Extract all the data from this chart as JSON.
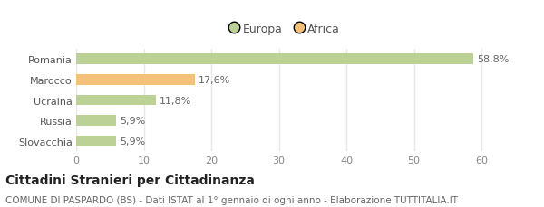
{
  "categories": [
    "Romania",
    "Marocco",
    "Ucraina",
    "Russia",
    "Slovacchia"
  ],
  "values": [
    58.8,
    17.6,
    11.8,
    5.9,
    5.9
  ],
  "labels": [
    "58,8%",
    "17,6%",
    "11,8%",
    "5,9%",
    "5,9%"
  ],
  "bar_colors": [
    "#bcd196",
    "#f5c07a",
    "#bcd196",
    "#bcd196",
    "#bcd196"
  ],
  "legend_items": [
    {
      "label": "Europa",
      "color": "#bcd196"
    },
    {
      "label": "Africa",
      "color": "#f5c07a"
    }
  ],
  "xlim": [
    0,
    62
  ],
  "xticks": [
    0,
    10,
    20,
    30,
    40,
    50,
    60
  ],
  "title": "Cittadini Stranieri per Cittadinanza",
  "subtitle": "COMUNE DI PASPARDO (BS) - Dati ISTAT al 1° gennaio di ogni anno - Elaborazione TUTTITALIA.IT",
  "background_color": "#ffffff",
  "grid_color": "#e8e8e8",
  "bar_height": 0.52,
  "title_fontsize": 10,
  "subtitle_fontsize": 7.5,
  "label_fontsize": 8,
  "tick_fontsize": 8,
  "category_fontsize": 8
}
